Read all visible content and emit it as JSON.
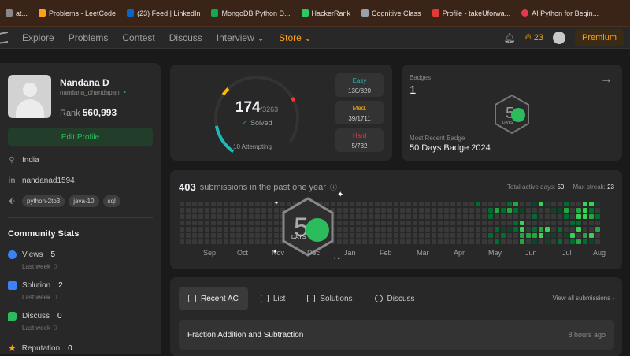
{
  "bookmarks": [
    {
      "label": "at...",
      "color": "#888888"
    },
    {
      "label": "Problems - LeetCode",
      "color": "#ffa116"
    },
    {
      "label": "(23) Feed | LinkedIn",
      "color": "#0a66c2"
    },
    {
      "label": "MongoDB Python D...",
      "color": "#13aa52"
    },
    {
      "label": "HackerRank",
      "color": "#2ec866"
    },
    {
      "label": "Cognitive Class",
      "color": "#9aa0a6"
    },
    {
      "label": "Profile - takeUforwa...",
      "color": "#e53935"
    },
    {
      "label": "AI Python for Begin...",
      "color": "#e53950"
    }
  ],
  "nav": {
    "items": [
      "Explore",
      "Problems",
      "Contest",
      "Discuss",
      "Interview ⌄",
      "Store ⌄"
    ],
    "streak": "23",
    "premium": "Premium"
  },
  "profile": {
    "name": "Nandana D",
    "handle": "nandana_dhandapani",
    "rank_label": "Rank",
    "rank_value": "560,993",
    "edit_label": "Edit Profile",
    "location": "India",
    "linkedin": "nandanad1594",
    "tags": [
      "python-2to3",
      "java-10",
      "sql"
    ]
  },
  "community": {
    "title": "Community Stats",
    "stats": [
      {
        "label": "Views",
        "value": "5",
        "sub": "Last week",
        "sub_val": "0",
        "color": "#3b82f6"
      },
      {
        "label": "Solution",
        "value": "2",
        "sub": "Last week",
        "sub_val": "0",
        "color": "#3b82f6"
      },
      {
        "label": "Discuss",
        "value": "0",
        "sub": "Last week",
        "sub_val": "0",
        "color": "#2cbb5d"
      },
      {
        "label": "Reputation",
        "value": "0",
        "sub": "",
        "sub_val": "",
        "color": "#ffa116"
      }
    ]
  },
  "solved": {
    "count": "174",
    "total": "/3263",
    "label": "Solved",
    "attempting": "10 Attempting",
    "easy": {
      "label": "Easy",
      "value": "130/820",
      "color": "#1cbaba"
    },
    "medium": {
      "label": "Med.",
      "value": "39/1711",
      "color": "#ffb700"
    },
    "hard": {
      "label": "Hard",
      "value": "5/732",
      "color": "#f63737"
    }
  },
  "badges": {
    "label": "Badges",
    "count": "1",
    "recent_label": "Most Recent Badge",
    "recent": "50 Days Badge 2024",
    "badge_text": "DAYS",
    "badge_num": "50"
  },
  "submissions": {
    "count": "403",
    "text": "submissions in the past one year",
    "active_label": "Total active days:",
    "active_value": "50",
    "streak_label": "Max streak:",
    "streak_value": "23",
    "months": [
      "Sep",
      "Oct",
      "Nov",
      "Dec",
      "Jan",
      "Feb",
      "Mar",
      "Apr",
      "May",
      "Jun",
      "Jul",
      "Aug"
    ]
  },
  "recent": {
    "tabs": [
      "Recent AC",
      "List",
      "Solutions",
      "Discuss"
    ],
    "view_all": "View all submissions ›",
    "problem": "Fraction Addition and Subtraction",
    "time": "8 hours ago"
  }
}
